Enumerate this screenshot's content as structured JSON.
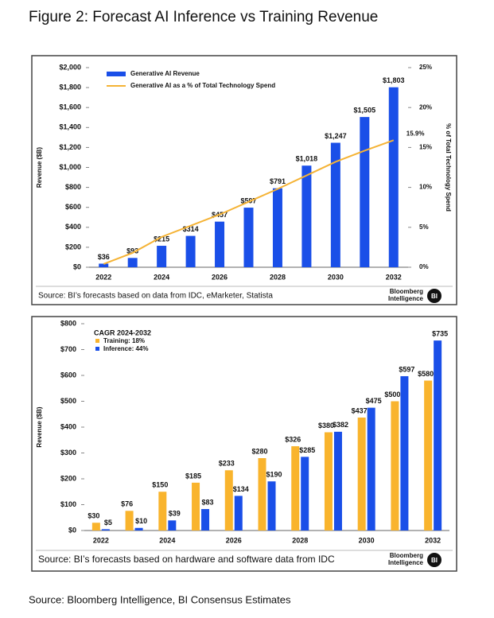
{
  "title": "Figure 2: Forecast AI Inference vs Training Revenue",
  "chart_data": [
    {
      "type": "combo",
      "y_label": "Revenue ($B)",
      "y2_label": "% of Total Technology Spend",
      "categories": [
        "2022",
        null,
        "2024",
        null,
        "2026",
        null,
        "2028",
        null,
        "2030",
        null,
        "2032"
      ],
      "series": [
        {
          "name": "Generative AI Revenue",
          "type": "bar",
          "color": "#1a4fe8",
          "values": [
            36,
            93,
            215,
            314,
            457,
            597,
            791,
            1018,
            1247,
            1505,
            1803
          ],
          "value_labels": [
            "$36",
            "$93",
            "$215",
            "$314",
            "$457",
            "$597",
            "$791",
            "$1,018",
            "$1,247",
            "$1,505",
            "$1,803"
          ]
        },
        {
          "name": "Generative AI as a % of Total Technology Spend",
          "type": "line",
          "axis": "y2",
          "color": "#f5b335",
          "values": [
            0.4,
            1.8,
            3.8,
            5.2,
            6.6,
            8.2,
            9.8,
            11.5,
            13.2,
            14.6,
            15.9
          ],
          "value_labels": [
            null,
            null,
            null,
            null,
            null,
            null,
            null,
            null,
            null,
            null,
            "15.9%"
          ]
        }
      ],
      "ylim": [
        0,
        2000
      ],
      "yticks": [
        {
          "value": 0,
          "label": "$0"
        },
        {
          "value": 200,
          "label": "$200"
        },
        {
          "value": 400,
          "label": "$400"
        },
        {
          "value": 600,
          "label": "$600"
        },
        {
          "value": 800,
          "label": "$800"
        },
        {
          "value": 1000,
          "label": "$1,000"
        },
        {
          "value": 1200,
          "label": "$1,200"
        },
        {
          "value": 1400,
          "label": "$1,400"
        },
        {
          "value": 1600,
          "label": "$1,600"
        },
        {
          "value": 1800,
          "label": "$1,800"
        },
        {
          "value": 2000,
          "label": "$2,000"
        }
      ],
      "y2lim": [
        0,
        25
      ],
      "y2ticks": [
        {
          "value": 0,
          "label": "0%"
        },
        {
          "value": 5,
          "label": "5%"
        },
        {
          "value": 10,
          "label": "10%"
        },
        {
          "value": 15,
          "label": "15%"
        },
        {
          "value": 20,
          "label": "20%"
        },
        {
          "value": 25,
          "label": "25%"
        }
      ],
      "grid": false,
      "legend": "upper left",
      "source": "Source: BI’s forecasts based on data from IDC, eMarketer, Statista",
      "brand": {
        "name": "Bloomberg",
        "unit": "Intelligence",
        "badge": "BI"
      }
    },
    {
      "type": "bar",
      "y_label": "Revenue ($B)",
      "annotation": "CAGR 2024-2032",
      "categories": [
        "2022",
        null,
        "2024",
        null,
        "2026",
        null,
        "2028",
        null,
        "2030",
        null,
        "2032"
      ],
      "series": [
        {
          "name": "Training: 18%",
          "type": "bar",
          "color": "#f9b42d",
          "values": [
            30,
            76,
            150,
            185,
            233,
            280,
            326,
            380,
            437,
            500,
            580
          ],
          "value_labels": [
            "$30",
            "$76",
            "$150",
            "$185",
            "$233",
            "$280",
            "$326",
            "$380",
            "$437",
            "$500",
            "$580"
          ]
        },
        {
          "name": "Inference: 44%",
          "type": "bar",
          "color": "#1a4fe8",
          "values": [
            5,
            10,
            39,
            83,
            134,
            190,
            285,
            382,
            475,
            597,
            735
          ],
          "value_labels": [
            "$5",
            "$10",
            "$39",
            "$83",
            "$134",
            "$190",
            "$285",
            "$382",
            "$475",
            "$597",
            "$735"
          ]
        }
      ],
      "ylim": [
        0,
        800
      ],
      "yticks": [
        {
          "value": 0,
          "label": "$0"
        },
        {
          "value": 100,
          "label": "$100"
        },
        {
          "value": 200,
          "label": "$200"
        },
        {
          "value": 300,
          "label": "$300"
        },
        {
          "value": 400,
          "label": "$400"
        },
        {
          "value": 500,
          "label": "$500"
        },
        {
          "value": 600,
          "label": "$600"
        },
        {
          "value": 700,
          "label": "$700"
        },
        {
          "value": 800,
          "label": "$800"
        }
      ],
      "grid": false,
      "legend": "upper left",
      "source": "Source: BI’s forecasts based on hardware and software data from IDC",
      "brand": {
        "name": "Bloomberg",
        "unit": "Intelligence",
        "badge": "BI"
      }
    }
  ],
  "footer": "Source: Bloomberg Intelligence, BI Consensus Estimates"
}
